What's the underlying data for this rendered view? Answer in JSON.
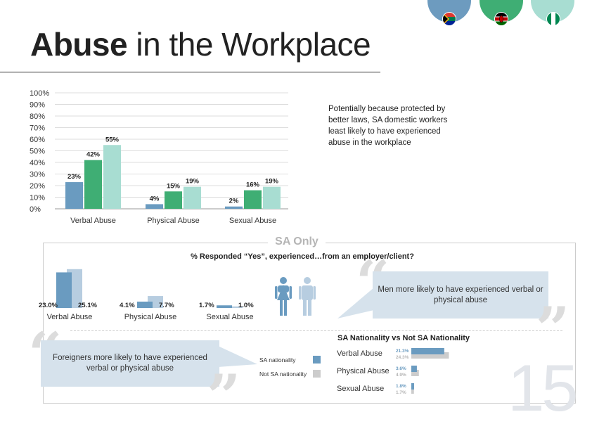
{
  "header": {
    "title_bold": "Abuse",
    "title_rest": " in the Workplace",
    "countries": [
      {
        "name": "South Africa",
        "circle_color": "#6d9bbf",
        "icon": "south-africa-flag-icon"
      },
      {
        "name": "Kenya",
        "circle_color": "#3fae74",
        "icon": "kenya-flag-icon"
      },
      {
        "name": "Nigeria",
        "circle_color": "#a8ddd2",
        "icon": "nigeria-flag-icon"
      }
    ]
  },
  "intro_text": "Potentially because protected by better laws, SA domestic workers least likely to have experienced abuse in the workplace",
  "colors": {
    "sa": "#6a9bc0",
    "kenya": "#3fae74",
    "nigeria": "#a8ddd2",
    "sa_nationality": "#6a9bc0",
    "not_sa_nationality": "#cccccc",
    "callout": "#d6e2ec"
  },
  "sa_section": {
    "label": "SA Only",
    "question": "% Responded “Yes”, experienced…from an employer/client?",
    "men_callout": "Men more likely to have experienced verbal or physical abuse",
    "foreigners_callout": "Foreigners more likely to have experienced verbal or physical abuse",
    "gender_icons": [
      "female-figure-icon",
      "male-figure-icon"
    ],
    "nationality_title": "SA Nationality vs Not SA Nationality",
    "legend": [
      "SA nationality",
      "Not SA nationality"
    ]
  },
  "page_number": "15",
  "chart_data": [
    {
      "type": "bar",
      "categories": [
        "Verbal Abuse",
        "Physical Abuse",
        "Sexual Abuse"
      ],
      "series": [
        {
          "values": [
            23,
            4,
            2
          ],
          "labels": [
            "23%",
            "4%",
            "2%"
          ],
          "color": "#6a9bc0"
        },
        {
          "values": [
            42,
            15,
            16
          ],
          "labels": [
            "42%",
            "15%",
            "16%"
          ],
          "color": "#3fae74"
        },
        {
          "values": [
            55,
            19,
            19
          ],
          "labels": [
            "55%",
            "19%",
            "19%"
          ],
          "color": "#a8ddd2"
        }
      ],
      "yticks": [
        "0%",
        "10%",
        "20%",
        "30%",
        "40%",
        "50%",
        "60%",
        "70%",
        "80%",
        "90%",
        "100%"
      ],
      "ylim": [
        0,
        100
      ],
      "grid": true
    },
    {
      "type": "bar",
      "categories": [
        "Verbal Abuse",
        "Physical Abuse",
        "Sexual Abuse"
      ],
      "series": [
        {
          "values": [
            23.0,
            4.1,
            1.7
          ],
          "labels": [
            "23.0%",
            "4.1%",
            "1.7%"
          ],
          "color": "#6a9bc0"
        },
        {
          "values": [
            25.1,
            7.7,
            1.0
          ],
          "labels": [
            "25.1%",
            "7.7%",
            "1.0%"
          ],
          "color": "#b7cde0"
        }
      ]
    },
    {
      "type": "bar",
      "orientation": "horizontal",
      "categories": [
        "Verbal Abuse",
        "Physical Abuse",
        "Sexual Abuse"
      ],
      "series": [
        {
          "name": "SA nationality",
          "values": [
            21.3,
            3.6,
            1.8
          ],
          "labels": [
            "21.3%",
            "3.6%",
            "1.8%"
          ],
          "color": "#6a9bc0"
        },
        {
          "name": "Not SA nationality",
          "values": [
            24.3,
            4.9,
            1.7
          ],
          "labels": [
            "24.3%",
            "4.9%",
            "1.7%"
          ],
          "color": "#cccccc"
        }
      ]
    }
  ]
}
